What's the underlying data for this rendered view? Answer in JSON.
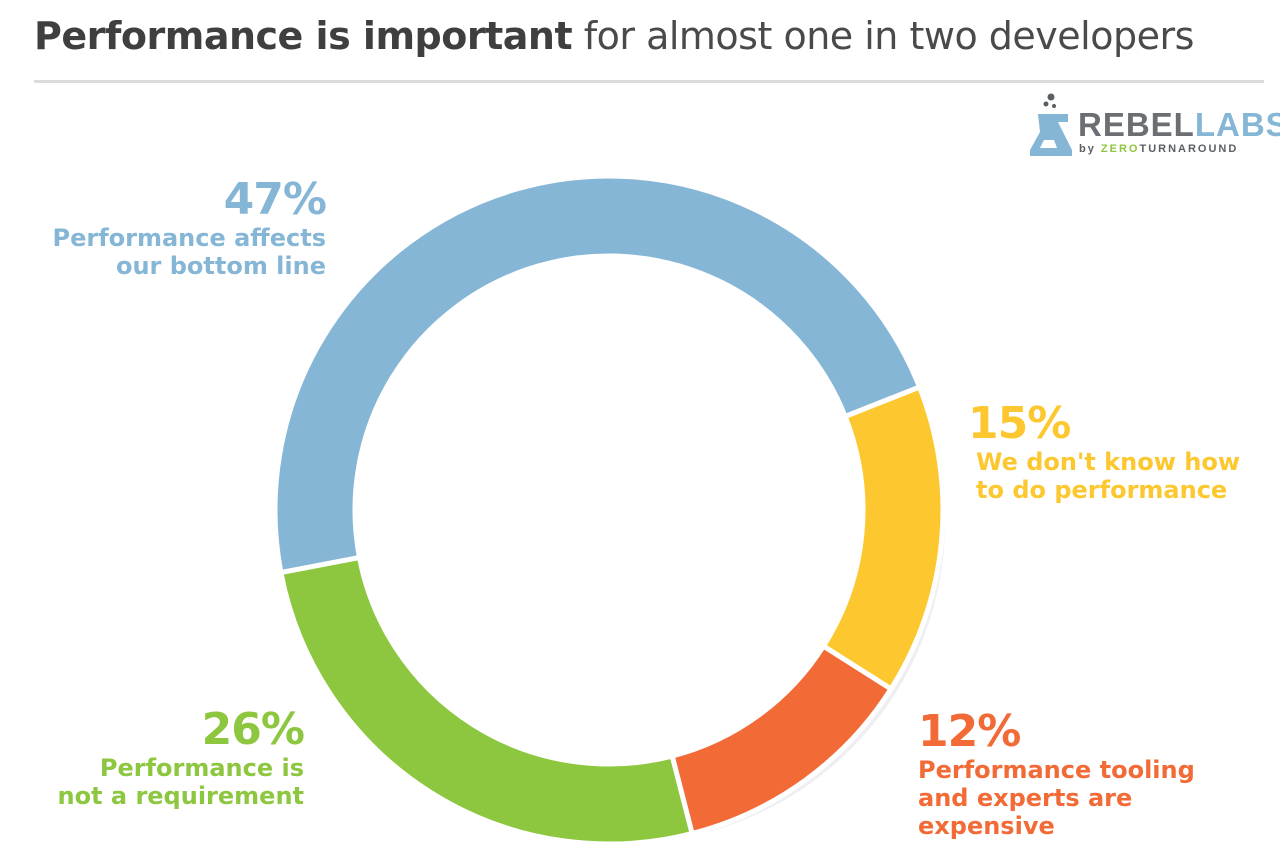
{
  "title": {
    "bold": "Performance is important",
    "rest": "for almost one in two developers"
  },
  "logo": {
    "word_main": "REBEL",
    "word_accent": "LABS",
    "by_prefix": "by ",
    "by_accent": "ZERO",
    "by_rest": "TURNAROUND"
  },
  "colors": {
    "blue": "#86b6d6",
    "yellow": "#fdc82f",
    "orange": "#f26a36",
    "green": "#8dc63f"
  },
  "chart_data": {
    "type": "pie",
    "variant": "donut",
    "title": "Performance is important for almost one in two developers",
    "unit": "%",
    "slices": [
      {
        "label_lines": [
          "Performance affects",
          "our bottom line"
        ],
        "value": 47,
        "display": "47%",
        "color": "#86b6d6"
      },
      {
        "label_lines": [
          "We don't know how",
          "to do performance"
        ],
        "value": 15,
        "display": "15%",
        "color": "#fdc82f"
      },
      {
        "label_lines": [
          "Performance tooling",
          "and experts are",
          "expensive"
        ],
        "value": 12,
        "display": "12%",
        "color": "#f26a36"
      },
      {
        "label_lines": [
          "Performance is",
          "not a requirement"
        ],
        "value": 26,
        "display": "26%",
        "color": "#8dc63f"
      }
    ]
  }
}
